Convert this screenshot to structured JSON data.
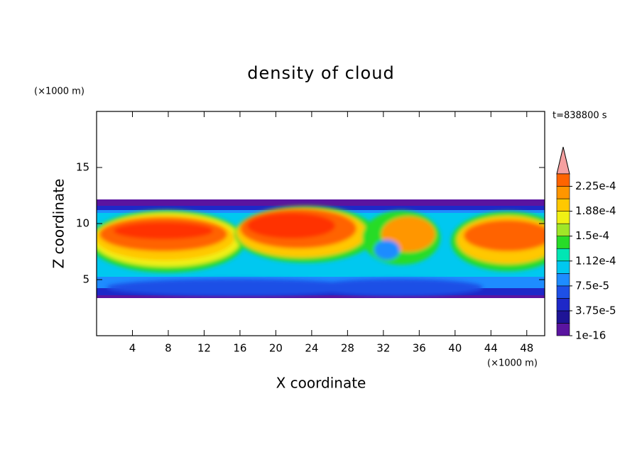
{
  "chart_data": {
    "type": "contour",
    "title": "density of cloud",
    "xlabel": "X coordinate",
    "ylabel": "Z coordinate",
    "xunit": "(×1000 m)",
    "yunit": "(×1000 m)",
    "time_label": "t=838800 s",
    "xlim": [
      0,
      50
    ],
    "xticks": [
      4,
      8,
      12,
      16,
      20,
      24,
      28,
      32,
      36,
      40,
      44,
      48
    ],
    "ylim": [
      0,
      20
    ],
    "yticks": [
      5,
      10,
      15
    ],
    "colorbar": {
      "lim": [
        0,
        0.00024375
      ],
      "ticks": [
        {
          "value": 0,
          "label": "1e-16"
        },
        {
          "value": 3.75e-05,
          "label": "3.75e-5"
        },
        {
          "value": 7.5e-05,
          "label": "7.5e-5"
        },
        {
          "value": 0.0001125,
          "label": "1.12e-4"
        },
        {
          "value": 0.00015,
          "label": "1.5e-4"
        },
        {
          "value": 0.0001875,
          "label": "1.88e-4"
        },
        {
          "value": 0.000225,
          "label": "2.25e-4"
        }
      ],
      "colors": [
        "#5a14a0",
        "#1e1496",
        "#1e28c8",
        "#1e50e6",
        "#1e8cff",
        "#00c8f0",
        "#00e6b4",
        "#28dc28",
        "#a0e628",
        "#f0f014",
        "#ffc800",
        "#ff9600",
        "#ff6400"
      ],
      "extend_color": "#f5a0a0"
    }
  }
}
